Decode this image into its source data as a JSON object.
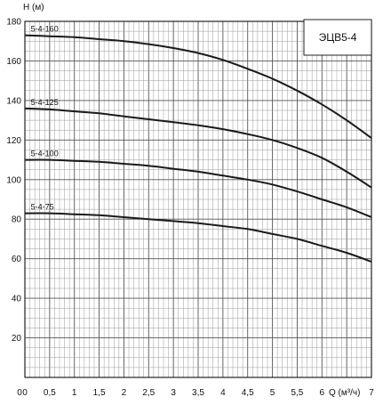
{
  "chart_data": {
    "type": "line",
    "title": "ЭЦВ5-4",
    "xlabel": "Q (м³/ч)",
    "ylabel": "H (м)",
    "xlim": [
      0,
      7
    ],
    "ylim": [
      0,
      180
    ],
    "x_ticks": [
      0,
      0.5,
      1,
      1.5,
      2,
      2.5,
      3,
      3.5,
      4,
      4.5,
      5,
      5.5,
      6,
      6.5,
      7
    ],
    "x_tick_labels": [
      "0",
      "0,5",
      "1",
      "1,5",
      "2",
      "2,5",
      "3",
      "3,5",
      "4",
      "4,5",
      "5",
      "5,5",
      "6",
      "",
      "7"
    ],
    "y_ticks": [
      0,
      20,
      40,
      60,
      80,
      100,
      120,
      140,
      160,
      180
    ],
    "y_tick_labels": [
      "",
      "20",
      "40",
      "60",
      "80",
      "100",
      "120",
      "140",
      "160",
      "180"
    ],
    "grid": true,
    "line_color": "#1a1a1a",
    "series": [
      {
        "name": "5-4-160",
        "x": [
          0,
          0.5,
          1,
          1.5,
          2,
          2.5,
          3,
          3.5,
          4,
          4.5,
          5,
          5.5,
          6,
          6.5,
          7
        ],
        "y": [
          173,
          172.5,
          172,
          171,
          170,
          168.5,
          166.5,
          164,
          160.5,
          156,
          151,
          145,
          138,
          130,
          121
        ]
      },
      {
        "name": "5-4-125",
        "x": [
          0,
          0.5,
          1,
          1.5,
          2,
          2.5,
          3,
          3.5,
          4,
          4.5,
          5,
          5.5,
          6,
          6.5,
          7
        ],
        "y": [
          136,
          135.5,
          134.5,
          133.5,
          132,
          130.5,
          129,
          127.5,
          125.5,
          123,
          120,
          116,
          111,
          104,
          96
        ]
      },
      {
        "name": "5-4-100",
        "x": [
          0,
          0.5,
          1,
          1.5,
          2,
          2.5,
          3,
          3.5,
          4,
          4.5,
          5,
          5.5,
          6,
          6.5,
          7
        ],
        "y": [
          110,
          110,
          109.5,
          109,
          108,
          107,
          105.5,
          104,
          102,
          100,
          97.5,
          94,
          90,
          86,
          81
        ]
      },
      {
        "name": "5-4-75",
        "x": [
          0,
          0.5,
          1,
          1.5,
          2,
          2.5,
          3,
          3.5,
          4,
          4.5,
          5,
          5.5,
          6,
          6.5,
          7
        ],
        "y": [
          83,
          83,
          82.5,
          82,
          81,
          80,
          79,
          78,
          76.5,
          75,
          72.5,
          70,
          66.5,
          63,
          58.5
        ]
      }
    ]
  }
}
